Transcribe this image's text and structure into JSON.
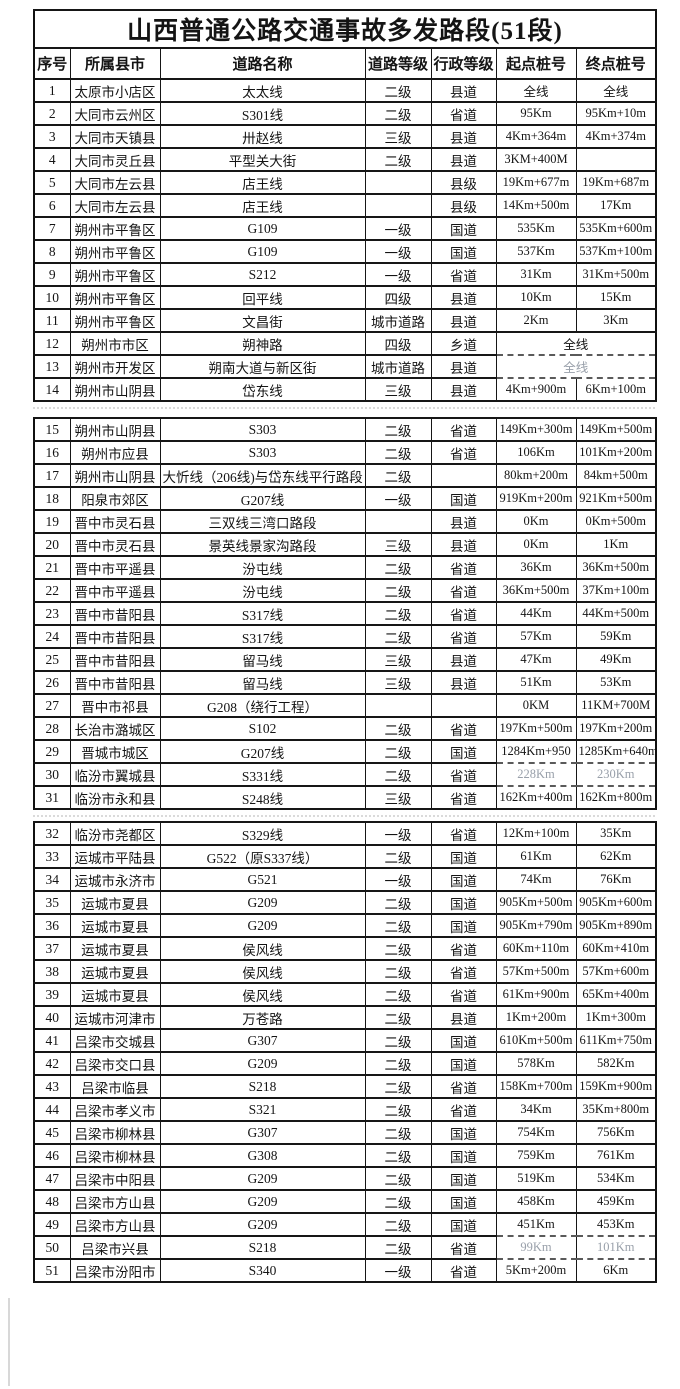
{
  "title": "山西普通公路交通事故多发路段(51段)",
  "columns": [
    "序号",
    "所属县市",
    "道路名称",
    "道路等级",
    "行政等级",
    "起点桩号",
    "终点桩号"
  ],
  "sections": [
    {
      "rows": [
        {
          "no": "1",
          "county": "太原市小店区",
          "road": "太太线",
          "grade": "二级",
          "admin": "县道",
          "start": "全线",
          "end": "全线"
        },
        {
          "no": "2",
          "county": "大同市云州区",
          "road": "S301线",
          "grade": "二级",
          "admin": "省道",
          "start": "95Km",
          "end": "95Km+10m"
        },
        {
          "no": "3",
          "county": "大同市天镇县",
          "road": "卅赵线",
          "grade": "三级",
          "admin": "县道",
          "start": "4Km+364m",
          "end": "4Km+374m"
        },
        {
          "no": "4",
          "county": "大同市灵丘县",
          "road": "平型关大街",
          "grade": "二级",
          "admin": "县道",
          "start": "3KM+400M",
          "end": ""
        },
        {
          "no": "5",
          "county": "大同市左云县",
          "road": "店王线",
          "grade": "",
          "admin": "县级",
          "start": "19Km+677m",
          "end": "19Km+687m"
        },
        {
          "no": "6",
          "county": "大同市左云县",
          "road": "店王线",
          "grade": "",
          "admin": "县级",
          "start": "14Km+500m",
          "end": "17Km"
        },
        {
          "no": "7",
          "county": "朔州市平鲁区",
          "road": "G109",
          "grade": "一级",
          "admin": "国道",
          "start": "535Km",
          "end": "535Km+600m"
        },
        {
          "no": "8",
          "county": "朔州市平鲁区",
          "road": "G109",
          "grade": "一级",
          "admin": "国道",
          "start": "537Km",
          "end": "537Km+100m"
        },
        {
          "no": "9",
          "county": "朔州市平鲁区",
          "road": "S212",
          "grade": "一级",
          "admin": "省道",
          "start": "31Km",
          "end": "31Km+500m"
        },
        {
          "no": "10",
          "county": "朔州市平鲁区",
          "road": "回平线",
          "grade": "四级",
          "admin": "县道",
          "start": "10Km",
          "end": "15Km"
        },
        {
          "no": "11",
          "county": "朔州市平鲁区",
          "road": "文昌街",
          "grade": "城市道路",
          "admin": "县道",
          "start": "2Km",
          "end": "3Km"
        },
        {
          "no": "12",
          "county": "朔州市市区",
          "road": "朔神路",
          "grade": "四级",
          "admin": "乡道",
          "start": "全线",
          "end": "",
          "merged_stake": true,
          "dash_bottom": true
        },
        {
          "no": "13",
          "county": "朔州市开发区",
          "road": "朔南大道与新区街",
          "grade": "城市道路",
          "admin": "县道",
          "start": "全线",
          "end": "",
          "merged_stake": true,
          "faded": true,
          "dash_top": true,
          "dash_bottom": true
        },
        {
          "no": "14",
          "county": "朔州市山阴县",
          "road": "岱东线",
          "grade": "三级",
          "admin": "县道",
          "start": "4Km+900m",
          "end": "6Km+100m",
          "dash_top": true
        }
      ]
    },
    {
      "rows": [
        {
          "no": "15",
          "county": "朔州市山阴县",
          "road": "S303",
          "grade": "二级",
          "admin": "省道",
          "start": "149Km+300m",
          "end": "149Km+500m"
        },
        {
          "no": "16",
          "county": "朔州市应县",
          "road": "S303",
          "grade": "二级",
          "admin": "省道",
          "start": "106Km",
          "end": "101Km+200m"
        },
        {
          "no": "17",
          "county": "朔州市山阴县",
          "road": "大忻线（206线)与岱东线平行路段",
          "grade": "二级",
          "admin": "",
          "start": "80km+200m",
          "end": "84km+500m"
        },
        {
          "no": "18",
          "county": "阳泉市郊区",
          "road": "G207线",
          "grade": "一级",
          "admin": "国道",
          "start": "919Km+200m",
          "end": "921Km+500m"
        },
        {
          "no": "19",
          "county": "晋中市灵石县",
          "road": "三双线三湾口路段",
          "grade": "",
          "admin": "县道",
          "start": "0Km",
          "end": "0Km+500m"
        },
        {
          "no": "20",
          "county": "晋中市灵石县",
          "road": "景英线景家沟路段",
          "grade": "三级",
          "admin": "县道",
          "start": "0Km",
          "end": "1Km"
        },
        {
          "no": "21",
          "county": "晋中市平遥县",
          "road": "汾屯线",
          "grade": "二级",
          "admin": "省道",
          "start": "36Km",
          "end": "36Km+500m"
        },
        {
          "no": "22",
          "county": "晋中市平遥县",
          "road": "汾屯线",
          "grade": "二级",
          "admin": "省道",
          "start": "36Km+500m",
          "end": "37Km+100m"
        },
        {
          "no": "23",
          "county": "晋中市昔阳县",
          "road": "S317线",
          "grade": "二级",
          "admin": "省道",
          "start": "44Km",
          "end": "44Km+500m"
        },
        {
          "no": "24",
          "county": "晋中市昔阳县",
          "road": "S317线",
          "grade": "二级",
          "admin": "省道",
          "start": "57Km",
          "end": "59Km"
        },
        {
          "no": "25",
          "county": "晋中市昔阳县",
          "road": "留马线",
          "grade": "三级",
          "admin": "县道",
          "start": "47Km",
          "end": "49Km"
        },
        {
          "no": "26",
          "county": "晋中市昔阳县",
          "road": "留马线",
          "grade": "三级",
          "admin": "县道",
          "start": "51Km",
          "end": "53Km"
        },
        {
          "no": "27",
          "county": "晋中市祁县",
          "road": "G208（绕行工程）",
          "grade": "",
          "admin": "",
          "start": "0KM",
          "end": "11KM+700M"
        },
        {
          "no": "28",
          "county": "长治市潞城区",
          "road": "S102",
          "grade": "二级",
          "admin": "省道",
          "start": "197Km+500m",
          "end": "197Km+200m"
        },
        {
          "no": "29",
          "county": "晋城市城区",
          "road": "G207线",
          "grade": "二级",
          "admin": "国道",
          "start": "1284Km+950",
          "end": "1285Km+640m",
          "dash_bottom": true
        },
        {
          "no": "30",
          "county": "临汾市翼城县",
          "road": "S331线",
          "grade": "二级",
          "admin": "省道",
          "start": "228Km",
          "end": "230Km",
          "faded": true,
          "dash_top": true,
          "dash_bottom": true
        },
        {
          "no": "31",
          "county": "临汾市永和县",
          "road": "S248线",
          "grade": "三级",
          "admin": "省道",
          "start": "162Km+400m",
          "end": "162Km+800m",
          "dash_top": true
        }
      ]
    },
    {
      "rows": [
        {
          "no": "32",
          "county": "临汾市尧都区",
          "road": "S329线",
          "grade": "一级",
          "admin": "省道",
          "start": "12Km+100m",
          "end": "35Km"
        },
        {
          "no": "33",
          "county": "运城市平陆县",
          "road": "G522（原S337线）",
          "grade": "二级",
          "admin": "国道",
          "start": "61Km",
          "end": "62Km"
        },
        {
          "no": "34",
          "county": "运城市永济市",
          "road": "G521",
          "grade": "一级",
          "admin": "国道",
          "start": "74Km",
          "end": "76Km"
        },
        {
          "no": "35",
          "county": "运城市夏县",
          "road": "G209",
          "grade": "二级",
          "admin": "国道",
          "start": "905Km+500m",
          "end": "905Km+600m"
        },
        {
          "no": "36",
          "county": "运城市夏县",
          "road": "G209",
          "grade": "二级",
          "admin": "国道",
          "start": "905Km+790m",
          "end": "905Km+890m"
        },
        {
          "no": "37",
          "county": "运城市夏县",
          "road": "侯风线",
          "grade": "二级",
          "admin": "省道",
          "start": "60Km+110m",
          "end": "60Km+410m"
        },
        {
          "no": "38",
          "county": "运城市夏县",
          "road": "侯风线",
          "grade": "二级",
          "admin": "省道",
          "start": "57Km+500m",
          "end": "57Km+600m"
        },
        {
          "no": "39",
          "county": "运城市夏县",
          "road": "侯风线",
          "grade": "二级",
          "admin": "省道",
          "start": "61Km+900m",
          "end": "65Km+400m"
        },
        {
          "no": "40",
          "county": "运城市河津市",
          "road": "万苍路",
          "grade": "二级",
          "admin": "县道",
          "start": "1Km+200m",
          "end": "1Km+300m"
        },
        {
          "no": "41",
          "county": "吕梁市交城县",
          "road": "G307",
          "grade": "二级",
          "admin": "国道",
          "start": "610Km+500m",
          "end": "611Km+750m"
        },
        {
          "no": "42",
          "county": "吕梁市交口县",
          "road": "G209",
          "grade": "二级",
          "admin": "国道",
          "start": "578Km",
          "end": "582Km"
        },
        {
          "no": "43",
          "county": "吕梁市临县",
          "road": "S218",
          "grade": "二级",
          "admin": "省道",
          "start": "158Km+700m",
          "end": "159Km+900m"
        },
        {
          "no": "44",
          "county": "吕梁市孝义市",
          "road": "S321",
          "grade": "二级",
          "admin": "省道",
          "start": "34Km",
          "end": "35Km+800m"
        },
        {
          "no": "45",
          "county": "吕梁市柳林县",
          "road": "G307",
          "grade": "二级",
          "admin": "国道",
          "start": "754Km",
          "end": "756Km"
        },
        {
          "no": "46",
          "county": "吕梁市柳林县",
          "road": "G308",
          "grade": "二级",
          "admin": "国道",
          "start": "759Km",
          "end": "761Km"
        },
        {
          "no": "47",
          "county": "吕梁市中阳县",
          "road": "G209",
          "grade": "二级",
          "admin": "国道",
          "start": "519Km",
          "end": "534Km"
        },
        {
          "no": "48",
          "county": "吕梁市方山县",
          "road": "G209",
          "grade": "二级",
          "admin": "国道",
          "start": "458Km",
          "end": "459Km"
        },
        {
          "no": "49",
          "county": "吕梁市方山县",
          "road": "G209",
          "grade": "二级",
          "admin": "国道",
          "start": "451Km",
          "end": "453Km",
          "dash_bottom": true
        },
        {
          "no": "50",
          "county": "吕梁市兴县",
          "road": "S218",
          "grade": "二级",
          "admin": "省道",
          "start": "99Km",
          "end": "101Km",
          "faded": true,
          "dash_top": true,
          "dash_bottom": true
        },
        {
          "no": "51",
          "county": "吕梁市汾阳市",
          "road": "S340",
          "grade": "一级",
          "admin": "省道",
          "start": "5Km+200m",
          "end": "6Km",
          "dash_top": true
        }
      ]
    }
  ]
}
